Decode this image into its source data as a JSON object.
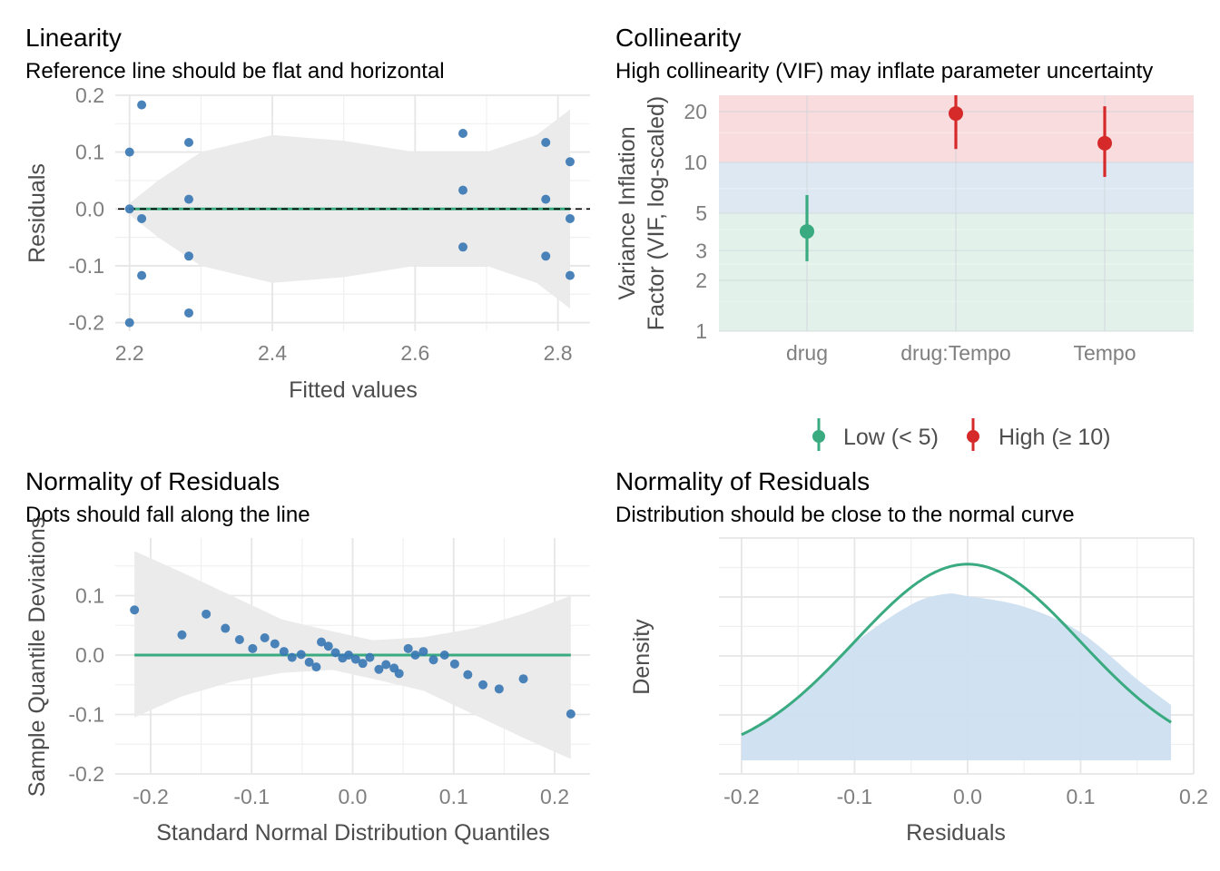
{
  "colors": {
    "points": "#3a78b4",
    "reference": "#3aaa80",
    "band": "#ebebeb",
    "grid": "#e6e6e6",
    "low_zone": "#e2f1ea",
    "moderate_zone": "#dde8f2",
    "high_zone": "#f9dcde",
    "low": "#3aaa80",
    "high": "#d62a2a",
    "density_fill": "#cddff0"
  },
  "chart_data": [
    {
      "type": "scatter",
      "title": "Linearity",
      "subtitle": "Reference line should be flat and horizontal",
      "xlabel": "Fitted values",
      "ylabel": "Residuals",
      "xlim": [
        2.18,
        2.845
      ],
      "ylim": [
        -0.215,
        0.2
      ],
      "xticks": [
        "2.2",
        "2.4",
        "2.6",
        "2.8"
      ],
      "yticks": [
        "0.2",
        "0.1",
        "0.0",
        "-0.1",
        "-0.2"
      ],
      "grid": true,
      "points": [
        {
          "x": 2.2,
          "y": 0.1
        },
        {
          "x": 2.2,
          "y": 0.0
        },
        {
          "x": 2.2,
          "y": -0.2
        },
        {
          "x": 2.217,
          "y": 0.183
        },
        {
          "x": 2.217,
          "y": -0.017
        },
        {
          "x": 2.217,
          "y": -0.117
        },
        {
          "x": 2.283,
          "y": 0.117
        },
        {
          "x": 2.283,
          "y": 0.017
        },
        {
          "x": 2.283,
          "y": -0.083
        },
        {
          "x": 2.283,
          "y": -0.183
        },
        {
          "x": 2.667,
          "y": 0.133
        },
        {
          "x": 2.667,
          "y": 0.033
        },
        {
          "x": 2.667,
          "y": -0.067
        },
        {
          "x": 2.783,
          "y": 0.117
        },
        {
          "x": 2.783,
          "y": 0.017
        },
        {
          "x": 2.783,
          "y": -0.083
        },
        {
          "x": 2.817,
          "y": 0.083
        },
        {
          "x": 2.817,
          "y": -0.017
        },
        {
          "x": 2.817,
          "y": -0.117
        }
      ],
      "fit_line": {
        "x": [
          2.2,
          2.817
        ],
        "y": [
          0.0,
          0.0
        ]
      },
      "reference_line_y": 0.0,
      "confidence_band": [
        {
          "x": 2.2,
          "lo": -0.01,
          "hi": 0.01
        },
        {
          "x": 2.24,
          "lo": -0.05,
          "hi": 0.05
        },
        {
          "x": 2.3,
          "lo": -0.1,
          "hi": 0.1
        },
        {
          "x": 2.4,
          "lo": -0.13,
          "hi": 0.13
        },
        {
          "x": 2.5,
          "lo": -0.12,
          "hi": 0.12
        },
        {
          "x": 2.6,
          "lo": -0.1,
          "hi": 0.1
        },
        {
          "x": 2.7,
          "lo": -0.1,
          "hi": 0.1
        },
        {
          "x": 2.77,
          "lo": -0.13,
          "hi": 0.13
        },
        {
          "x": 2.817,
          "lo": -0.175,
          "hi": 0.175
        }
      ]
    },
    {
      "type": "bar",
      "title": "Collinearity",
      "subtitle": "High collinearity (VIF) may inflate parameter uncertainty",
      "xlabel": "",
      "ylabel": [
        "Variance Inflation",
        "Factor (VIF, log-scaled)"
      ],
      "y_scale": "log",
      "ylim": [
        1,
        25
      ],
      "yticks": [
        {
          "value": 1,
          "label": "1"
        },
        {
          "value": 2,
          "label": "2"
        },
        {
          "value": 3,
          "label": "3"
        },
        {
          "value": 5,
          "label": "5"
        },
        {
          "value": 10,
          "label": "10"
        },
        {
          "value": 20,
          "label": "20"
        }
      ],
      "zones": [
        {
          "name": "low",
          "from": 1,
          "to": 5
        },
        {
          "name": "moderate",
          "from": 5,
          "to": 10
        },
        {
          "name": "high",
          "from": 10,
          "to": 25
        }
      ],
      "categories": [
        "drug",
        "drug:Tempo",
        "Tempo"
      ],
      "estimates": [
        {
          "term": "drug",
          "vif": 3.9,
          "lo": 2.6,
          "hi": 6.4,
          "group": "low"
        },
        {
          "term": "drug:Tempo",
          "vif": 19.5,
          "lo": 12.0,
          "hi": 33.0,
          "group": "high"
        },
        {
          "term": "Tempo",
          "vif": 13.0,
          "lo": 8.2,
          "hi": 21.5,
          "group": "high"
        }
      ],
      "legend": {
        "position": "bottom",
        "entries": [
          {
            "label": "Low (< 5)",
            "group": "low"
          },
          {
            "label": "High (≥ 10)",
            "group": "high"
          }
        ]
      }
    },
    {
      "type": "scatter",
      "title": "Normality of Residuals",
      "subtitle": "Dots should fall along the line",
      "xlabel": "Standard Normal Distribution Quantiles",
      "ylabel": "Sample Quantile Deviations",
      "xlim": [
        -0.235,
        0.235
      ],
      "ylim": [
        -0.2,
        0.197
      ],
      "xticks": [
        {
          "value": -0.2,
          "label": "-0.2"
        },
        {
          "value": -0.1,
          "label": "-0.1"
        },
        {
          "value": 0.0,
          "label": "0.0"
        },
        {
          "value": 0.1,
          "label": "0.1"
        },
        {
          "value": 0.2,
          "label": "0.2"
        }
      ],
      "yticks": [
        {
          "value": 0.1,
          "label": "0.1"
        },
        {
          "value": 0.0,
          "label": "0.0"
        },
        {
          "value": -0.1,
          "label": "-0.1"
        },
        {
          "value": -0.2,
          "label": "-0.2"
        }
      ],
      "grid": true,
      "points": [
        {
          "x": -0.216,
          "y": 0.076
        },
        {
          "x": -0.169,
          "y": 0.034
        },
        {
          "x": -0.145,
          "y": 0.069
        },
        {
          "x": -0.126,
          "y": 0.045
        },
        {
          "x": -0.112,
          "y": 0.026
        },
        {
          "x": -0.099,
          "y": 0.011
        },
        {
          "x": -0.087,
          "y": 0.029
        },
        {
          "x": -0.077,
          "y": 0.019
        },
        {
          "x": -0.068,
          "y": 0.006
        },
        {
          "x": -0.06,
          "y": -0.004
        },
        {
          "x": -0.051,
          "y": 0.001
        },
        {
          "x": -0.043,
          "y": -0.012
        },
        {
          "x": -0.036,
          "y": -0.02
        },
        {
          "x": -0.031,
          "y": 0.022
        },
        {
          "x": -0.024,
          "y": 0.015
        },
        {
          "x": -0.017,
          "y": 0.004
        },
        {
          "x": -0.01,
          "y": -0.005
        },
        {
          "x": -0.004,
          "y": 0.0
        },
        {
          "x": 0.003,
          "y": -0.007
        },
        {
          "x": 0.01,
          "y": -0.014
        },
        {
          "x": 0.017,
          "y": -0.004
        },
        {
          "x": 0.026,
          "y": -0.024
        },
        {
          "x": 0.033,
          "y": -0.016
        },
        {
          "x": 0.041,
          "y": -0.022
        },
        {
          "x": 0.046,
          "y": -0.031
        },
        {
          "x": 0.055,
          "y": 0.011
        },
        {
          "x": 0.062,
          "y": 0.0
        },
        {
          "x": 0.07,
          "y": 0.006
        },
        {
          "x": 0.08,
          "y": -0.008
        },
        {
          "x": 0.091,
          "y": 0.0
        },
        {
          "x": 0.101,
          "y": -0.015
        },
        {
          "x": 0.114,
          "y": -0.033
        },
        {
          "x": 0.129,
          "y": -0.05
        },
        {
          "x": 0.145,
          "y": -0.057
        },
        {
          "x": 0.169,
          "y": -0.04
        },
        {
          "x": 0.216,
          "y": -0.099
        }
      ],
      "reference_line": {
        "x": [
          -0.216,
          0.216
        ],
        "y": [
          0.0,
          0.0
        ]
      },
      "confidence_band": [
        {
          "x": -0.216,
          "lo": -0.105,
          "hi": 0.175
        },
        {
          "x": -0.17,
          "lo": -0.07,
          "hi": 0.14
        },
        {
          "x": -0.12,
          "lo": -0.045,
          "hi": 0.1
        },
        {
          "x": -0.07,
          "lo": -0.03,
          "hi": 0.06
        },
        {
          "x": -0.02,
          "lo": -0.025,
          "hi": 0.04
        },
        {
          "x": 0.02,
          "lo": -0.04,
          "hi": 0.025
        },
        {
          "x": 0.07,
          "lo": -0.06,
          "hi": 0.03
        },
        {
          "x": 0.12,
          "lo": -0.1,
          "hi": 0.045
        },
        {
          "x": 0.17,
          "lo": -0.14,
          "hi": 0.07
        },
        {
          "x": 0.216,
          "lo": -0.175,
          "hi": 0.1
        }
      ]
    },
    {
      "type": "area",
      "title": "Normality of Residuals",
      "subtitle": "Distribution should be close to the normal curve",
      "xlabel": "Residuals",
      "ylabel": "Density",
      "xlim": [
        -0.22,
        0.2
      ],
      "ylim": [
        0,
        1.0
      ],
      "xticks": [
        {
          "value": -0.2,
          "label": "-0.2"
        },
        {
          "value": -0.1,
          "label": "-0.1"
        },
        {
          "value": 0.0,
          "label": "0.0"
        },
        {
          "value": 0.1,
          "label": "0.1"
        },
        {
          "value": 0.2,
          "label": "0.2"
        }
      ],
      "grid": true,
      "density_curve": {
        "x": [
          -0.2,
          -0.15,
          -0.1,
          -0.05,
          -0.02,
          0.0,
          0.05,
          0.1,
          0.15,
          0.18
        ],
        "y": [
          0.12,
          0.3,
          0.55,
          0.73,
          0.78,
          0.77,
          0.72,
          0.6,
          0.38,
          0.26
        ]
      },
      "normal_curve": {
        "mean": 0.0,
        "sd": 0.1,
        "range": [
          -0.2,
          0.18
        ],
        "peak": 0.92,
        "base": 0.12
      }
    }
  ]
}
